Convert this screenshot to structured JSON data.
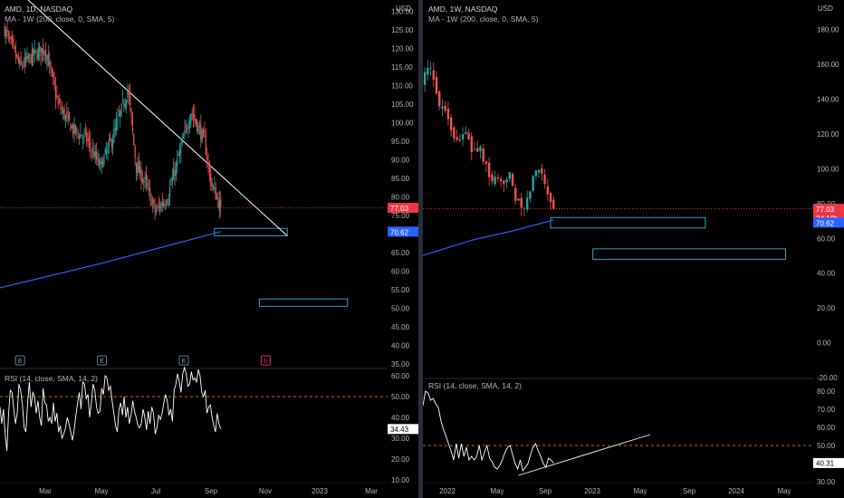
{
  "colors": {
    "background": "#000000",
    "bull": "#26a69a",
    "bear": "#ef5350",
    "ma_line": "#2962ff",
    "price_line": "#f23645",
    "zone_box": "#2fa3c2",
    "rsi_line": "#ffffff",
    "rsi_level": "#f7931a",
    "trendline": "#ffffff",
    "axis_text": "#b2b5be",
    "grid": "#1c1f27"
  },
  "left_panel": {
    "symbol_line": "AMD, 1D, NASDAQ",
    "ma_legend": "MA - 1W (200, close, 0, SMA, 5)",
    "rsi_legend": "RSI (14, close, SMA, 14, 2)",
    "currency": "USD",
    "price_labels": {
      "last": "77.03",
      "ma": "70.62"
    },
    "rsi_label": "34.43",
    "earnings_markers": [
      "E",
      "E",
      "E",
      "E"
    ]
  },
  "right_panel": {
    "symbol_line": "AMD, 1W, NASDAQ",
    "ma_legend": "MA - 1W (200, close, 0, SMA, 5)",
    "rsi_legend": "RSI (14, close, SMA, 14, 2)",
    "currency": "USD",
    "price_labels": {
      "last": "77.03",
      "countdown": "2d 19h",
      "ma": "70.62"
    },
    "rsi_label": "40.31"
  },
  "chart_data": [
    {
      "type": "candlestick",
      "title": "AMD, 1D, NASDAQ",
      "timeframe": "1D",
      "y_axis_ticks": [
        "130.00",
        "125.00",
        "120.00",
        "115.00",
        "110.00",
        "105.00",
        "100.00",
        "95.00",
        "90.00",
        "85.00",
        "80.00",
        "75.00",
        "70.00",
        "65.00",
        "60.00",
        "55.00",
        "50.00",
        "45.00",
        "40.00",
        "35.00"
      ],
      "x_axis_ticks": [
        "Mar",
        "May",
        "Jul",
        "Sep",
        "Nov",
        "2023",
        "Mar"
      ],
      "ylim": [
        31,
        133
      ],
      "price_path": [
        {
          "date": "2022-01-15",
          "close": 125
        },
        {
          "date": "2022-02-01",
          "close": 115
        },
        {
          "date": "2022-02-15",
          "close": 118
        },
        {
          "date": "2022-03-01",
          "close": 120
        },
        {
          "date": "2022-03-15",
          "close": 105
        },
        {
          "date": "2022-04-01",
          "close": 98
        },
        {
          "date": "2022-04-15",
          "close": 96
        },
        {
          "date": "2022-05-01",
          "close": 88
        },
        {
          "date": "2022-05-15",
          "close": 96
        },
        {
          "date": "2022-06-01",
          "close": 109
        },
        {
          "date": "2022-06-10",
          "close": 88
        },
        {
          "date": "2022-06-20",
          "close": 84
        },
        {
          "date": "2022-07-01",
          "close": 76
        },
        {
          "date": "2022-07-15",
          "close": 80
        },
        {
          "date": "2022-08-01",
          "close": 95
        },
        {
          "date": "2022-08-10",
          "close": 103
        },
        {
          "date": "2022-08-25",
          "close": 95
        },
        {
          "date": "2022-09-01",
          "close": 84
        },
        {
          "date": "2022-09-12",
          "close": 77
        }
      ],
      "last_price": 77.03,
      "moving_average": {
        "name": "MA - 1W (200, close, 0, SMA, 5)",
        "points": [
          {
            "date": "2022-01-01",
            "value": 55
          },
          {
            "date": "2022-05-01",
            "value": 62
          },
          {
            "date": "2022-09-12",
            "value": 70.62
          }
        ]
      },
      "zones": [
        {
          "from_date": "2022-09-05",
          "to_date": "2022-11-25",
          "low": 69.5,
          "high": 71.5
        },
        {
          "from_date": "2022-10-25",
          "to_date": "2023-01-31",
          "low": 50.5,
          "high": 52.5
        }
      ],
      "trendline": {
        "from": {
          "date": "2022-02-10",
          "price": 133
        },
        "to": {
          "date": "2022-11-25",
          "price": 69.5
        }
      },
      "earnings_dates": [
        "2022-02-01",
        "2022-05-03",
        "2022-08-02",
        "2022-11-01"
      ],
      "rsi": {
        "name": "RSI (14, close, SMA, 14, 2)",
        "ticks": [
          "60.00",
          "50.00",
          "40.00",
          "30.00",
          "20.00",
          "10.00"
        ],
        "level": 50,
        "last": 34.43,
        "values": [
          45,
          37,
          44,
          32,
          24,
          42,
          53,
          52,
          44,
          37,
          42,
          56,
          53,
          46,
          35,
          33,
          47,
          57,
          45,
          52,
          50,
          42,
          48,
          40,
          36,
          54,
          47,
          46,
          38,
          40,
          37,
          47,
          38,
          42,
          33,
          36,
          30,
          32,
          35,
          40,
          37,
          33,
          29,
          34,
          41,
          47,
          52,
          44,
          57,
          56,
          49,
          51,
          40,
          47,
          56,
          53,
          45,
          42,
          43,
          54,
          51,
          60,
          59,
          53,
          55,
          48,
          42,
          36,
          33,
          44,
          47,
          41,
          50,
          40,
          45,
          37,
          41,
          48,
          43,
          40,
          36,
          35,
          37,
          44,
          40,
          34,
          43,
          37,
          45,
          42,
          32,
          35,
          41,
          39,
          42,
          47,
          51,
          48,
          41,
          44,
          38,
          53,
          56,
          61,
          57,
          52,
          61,
          64,
          61,
          55,
          56,
          62,
          58,
          59,
          57,
          63,
          60,
          52,
          50,
          53,
          42,
          45,
          46,
          40,
          36,
          33,
          42,
          37,
          34.43
        ]
      }
    },
    {
      "type": "candlestick",
      "title": "AMD, 1W, NASDAQ",
      "timeframe": "1W",
      "y_axis_ticks": [
        "180.00",
        "160.00",
        "140.00",
        "120.00",
        "100.00",
        "80.00",
        "60.00",
        "40.00",
        "20.00",
        "0.00",
        "-20.00"
      ],
      "x_axis_ticks": [
        "2022",
        "May",
        "Sep",
        "2023",
        "May",
        "Sep",
        "2024",
        "May"
      ],
      "ylim": [
        -26,
        197
      ],
      "price_path": [
        {
          "date": "2021-11-01",
          "close": 150
        },
        {
          "date": "2021-11-20",
          "close": 158
        },
        {
          "date": "2021-12-10",
          "close": 140
        },
        {
          "date": "2022-01-01",
          "close": 132
        },
        {
          "date": "2022-01-20",
          "close": 115
        },
        {
          "date": "2022-02-10",
          "close": 122
        },
        {
          "date": "2022-03-01",
          "close": 110
        },
        {
          "date": "2022-03-20",
          "close": 112
        },
        {
          "date": "2022-04-10",
          "close": 95
        },
        {
          "date": "2022-05-10",
          "close": 90
        },
        {
          "date": "2022-05-30",
          "close": 100
        },
        {
          "date": "2022-06-15",
          "close": 80
        },
        {
          "date": "2022-07-05",
          "close": 76
        },
        {
          "date": "2022-07-25",
          "close": 95
        },
        {
          "date": "2022-08-10",
          "close": 102
        },
        {
          "date": "2022-08-25",
          "close": 90
        },
        {
          "date": "2022-09-12",
          "close": 77
        }
      ],
      "last_price": 77.03,
      "moving_average": {
        "name": "MA - 1W (200, close, 0, SMA, 5)",
        "points": [
          {
            "date": "2021-11-01",
            "value": 50
          },
          {
            "date": "2022-03-01",
            "value": 59
          },
          {
            "date": "2022-06-01",
            "value": 64
          },
          {
            "date": "2022-09-12",
            "value": 70.62
          }
        ]
      },
      "zones": [
        {
          "from_date": "2022-09-05",
          "to_date": "2023-09-10",
          "low": 66,
          "high": 72
        },
        {
          "from_date": "2022-12-15",
          "to_date": "2024-03-20",
          "low": 48,
          "high": 54
        }
      ],
      "rsi": {
        "name": "RSI (14, close, SMA, 14, 2)",
        "ticks": [
          "80.00",
          "70.00",
          "60.00",
          "50.00",
          "40.00",
          "30.00"
        ],
        "level": 50,
        "last": 40.31,
        "values": [
          72,
          80,
          79,
          75,
          76,
          73,
          71,
          64,
          59,
          55,
          51,
          47,
          42,
          51,
          43,
          51,
          44,
          49,
          42,
          44,
          42,
          44,
          50,
          42,
          46,
          50,
          43,
          41,
          38,
          37,
          39,
          42,
          46,
          49,
          50,
          45,
          40,
          37,
          42,
          36,
          38,
          40,
          45,
          49,
          51,
          47,
          44,
          40,
          38,
          43,
          42,
          40.31
        ],
        "trendline": {
          "from": {
            "date": "2022-06-20",
            "value": 33.5
          },
          "to": {
            "date": "2023-05-01",
            "value": 56
          }
        }
      }
    }
  ]
}
